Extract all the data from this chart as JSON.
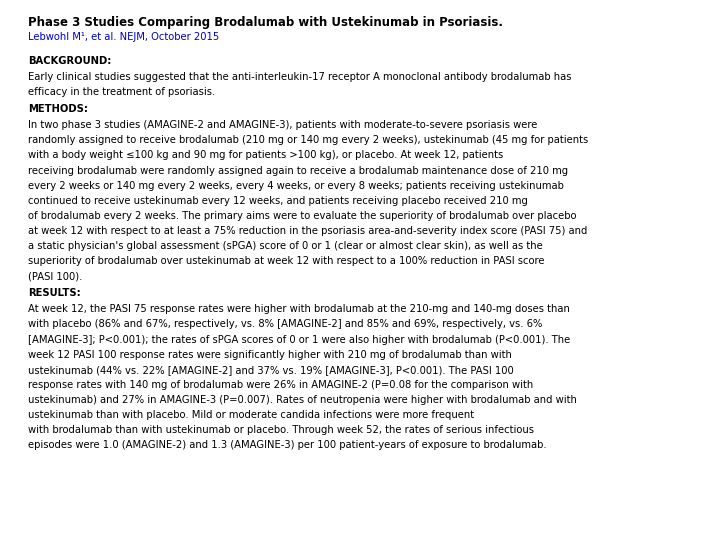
{
  "title_line1": "Phase 3 Studies Comparing Brodalumab with Ustekinumab in Psoriasis.",
  "title_line2": "Lebwohl M¹, et al. NEJM, October 2015",
  "background_color": "#ffffff",
  "text_color": "#000000",
  "link_color": "#0000cc",
  "sections": {
    "background_header": "BACKGROUND:",
    "background_text": "Early clinical studies suggested that the anti-interleukin-17 receptor A monoclonal antibody brodalumab has\nefficacy in the treatment of psoriasis.",
    "methods_header": "METHODS:",
    "methods_text_normal": "In two phase 3 studies (AMAGINE-2 and AMAGINE-3), patients with moderate-to-severe psoriasis were\nrandomly assigned to receive brodalumab (210 mg or 140 mg every 2 weeks), ustekinumab (45 mg for patients\nwith a body weight ≤100 kg and 90 mg for patients >100 kg), or placebo. At week 12, patients\nreceiving brodalumab were randomly assigned again to receive a brodalumab maintenance dose of 210 mg\nevery 2 weeks or 140 mg every 2 weeks, every 4 weeks, or every 8 weeks; patients receiving ustekinumab\ncontinued to receive ustekinumab every 12 weeks, and patients receiving placebo received 210 mg\nof brodalumab every 2 weeks. ",
    "methods_text_bold_start": "The primary aims",
    "methods_text_after_bold": " were to evaluate the superiority of brodalumab over placebo\nat week 12 with respect to at least a 75% reduction in the psoriasis area-and-severity index score (PASI 75) and\na static physician's global assessment (sPGA) score of 0 or 1 (clear or almost clear skin), ",
    "methods_text_bold_end": "as well as the\nsuperiority of brodalumab over ustekinumab at week 12 with respect to a 100% reduction in PASI score\n(PASI 100).",
    "results_header": "RESULTS:",
    "results_text_normal_1": "At week 12, the PASI 75 response rates were higher with brodalumab at the 210-mg and 140-mg doses than\nwith placebo (86% and 67%, respectively, vs. 8% [AMAGINE-2] and 85% and 69%, respectively, vs. 6%\n[AMAGINE-3]; P<0.001); the rates of sPGA scores of 0 or 1 were also higher with brodalumab (P<0.001). ",
    "results_text_bold_1": "The\nweek 12 PASI 100 response rates were significantly higher with 210 mg of brodalumab than with\nustekinumab (44% vs. 22% [AMAGINE-2] and 37% vs. 19% [AMAGINE-3], P<0.001).",
    "results_text_normal_2": " The PASI 100\nresponse rates with 140 mg of brodalumab were 26% in AMAGINE-2 (P=0.08 for the comparison with\nustekinumab) and 27% in AMAGINE-3 (P=0.007). Rates of neutropenia were higher with brodalumab and with\nustekinumab than with placebo. ",
    "results_text_bold_2": "Mild or moderate candida infections were more frequent\nwith brodalumab than with ustekinumab or placebo.",
    "results_text_normal_3": " Through week 52, the rates of serious infectious\nepisodes were 1.0 (AMAGINE-2) and 1.3 (AMAGINE-3) per 100 patient-years of exposure to brodalumab."
  }
}
